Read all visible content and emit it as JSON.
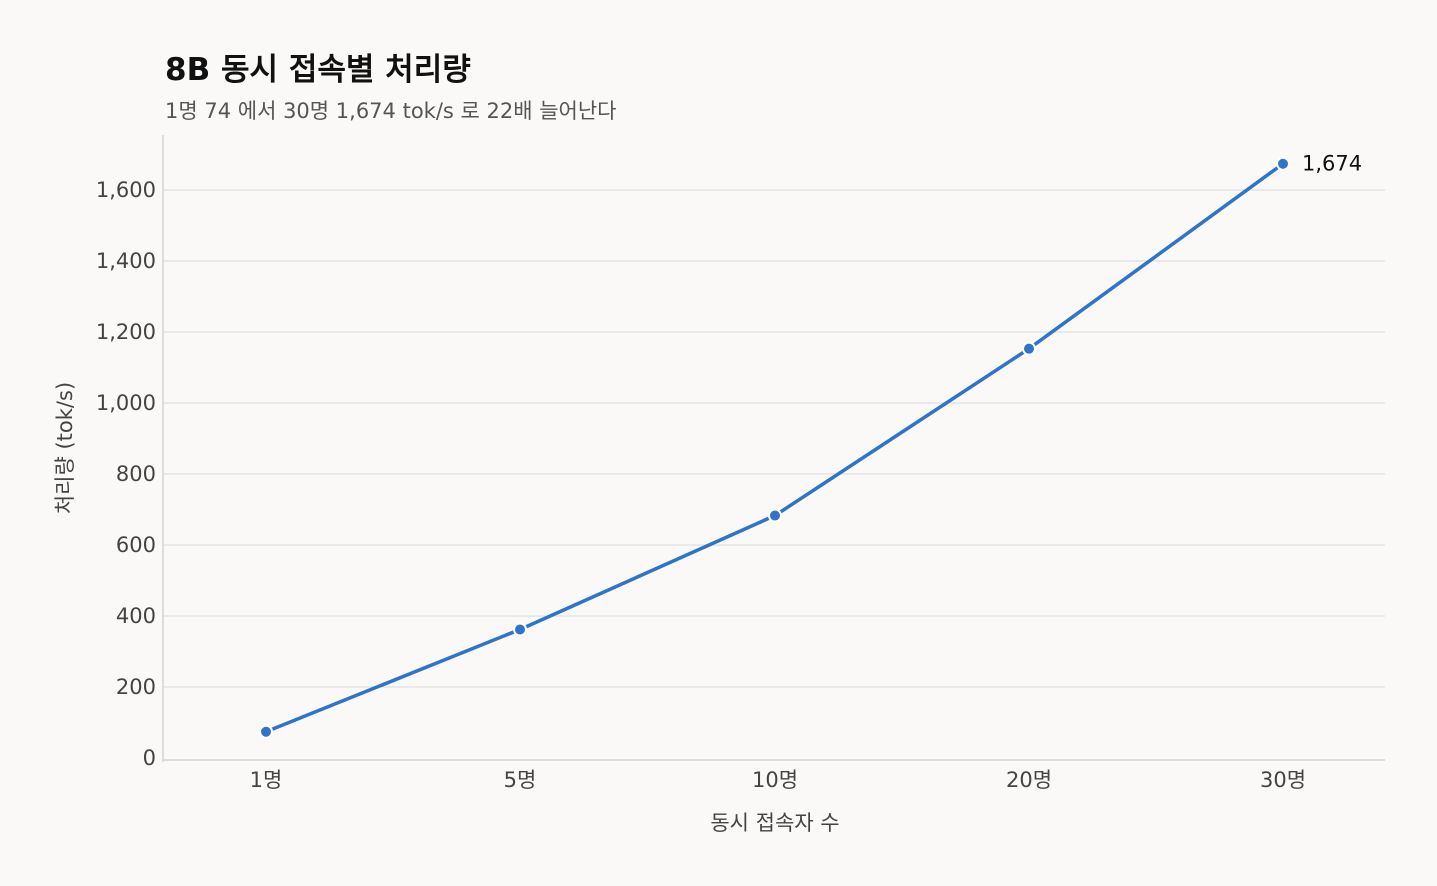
{
  "chart_data": {
    "type": "line",
    "title": "8B 동시 접속별 처리량",
    "subtitle": "1명 74 에서 30명 1,674 tok/s 로 22배 늘어난다",
    "xlabel": "동시 접속자 수",
    "ylabel": "처리량 (tok/s)",
    "categories": [
      "1명",
      "5명",
      "10명",
      "20명",
      "30명"
    ],
    "series": [
      {
        "values": [
          74,
          362,
          683,
          1153,
          1674
        ]
      }
    ],
    "y_ticks": [
      0,
      200,
      400,
      600,
      800,
      1000,
      1200,
      1400,
      1600
    ],
    "y_tick_labels": [
      "0",
      "200",
      "400",
      "600",
      "800",
      "1,000",
      "1,200",
      "1,400",
      "1,600"
    ],
    "ylim": [
      0,
      1700
    ],
    "grid": "horizontal",
    "legend": "none",
    "end_label": "1,674",
    "line_color": "#2e74c9"
  }
}
